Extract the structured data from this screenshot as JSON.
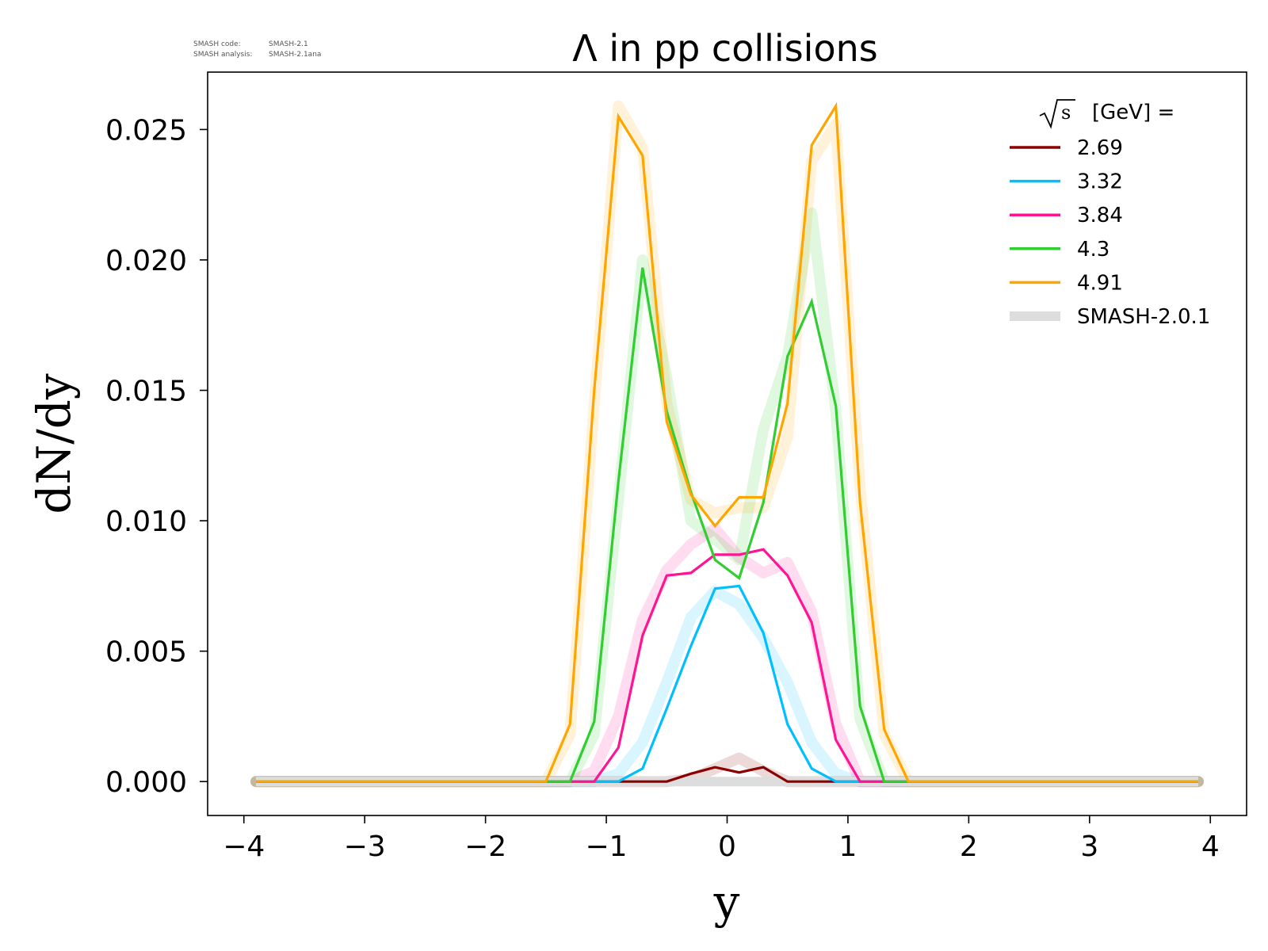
{
  "meta": {
    "code_label": "SMASH code:",
    "code_value": "SMASH-2.1",
    "analysis_label": "SMASH analysis:",
    "analysis_value": "SMASH-2.1ana"
  },
  "chart_data": {
    "type": "line",
    "title": "Λ in pp collisions",
    "xlabel": "y",
    "ylabel": "dN/dy",
    "xlim": [
      -4.3,
      4.3
    ],
    "ylim": [
      -0.0013,
      0.0272
    ],
    "xticks": [
      -4,
      -3,
      -2,
      -1,
      0,
      1,
      2,
      3,
      4
    ],
    "xtick_labels": [
      "−4",
      "−3",
      "−2",
      "−1",
      "0",
      "1",
      "2",
      "3",
      "4"
    ],
    "yticks": [
      0.0,
      0.005,
      0.01,
      0.015,
      0.02,
      0.025
    ],
    "ytick_labels": [
      "0.000",
      "0.005",
      "0.010",
      "0.015",
      "0.020",
      "0.025"
    ],
    "grid": false,
    "legend": {
      "placement": "top-right",
      "title_sqrt": "s",
      "title_suffix": "[GeV] ="
    },
    "x": [
      -3.9,
      -3.7,
      -3.5,
      -3.3,
      -3.1,
      -2.9,
      -2.7,
      -2.5,
      -2.3,
      -2.1,
      -1.9,
      -1.7,
      -1.5,
      -1.3,
      -1.1,
      -0.9,
      -0.7,
      -0.5,
      -0.3,
      -0.1,
      0.1,
      0.3,
      0.5,
      0.7,
      0.9,
      1.1,
      1.3,
      1.5,
      1.7,
      1.9,
      2.1,
      2.3,
      2.5,
      2.7,
      2.9,
      3.1,
      3.3,
      3.5,
      3.7,
      3.9
    ],
    "series": [
      {
        "name": "2.69",
        "color": "#8b0000",
        "values": [
          0,
          0,
          0,
          0,
          0,
          0,
          0,
          0,
          0,
          0,
          0,
          0,
          0,
          0,
          0,
          0,
          0,
          0,
          0.0003,
          0.00055,
          0.00035,
          0.00055,
          0,
          0,
          0,
          0,
          0,
          0,
          0,
          0,
          0,
          0,
          0,
          0,
          0,
          0,
          0,
          0,
          0,
          0
        ],
        "reference": [
          0,
          0,
          0,
          0,
          0,
          0,
          0,
          0,
          0,
          0,
          0,
          0,
          0,
          0,
          0,
          0,
          0,
          0,
          0.0001,
          0.0005,
          0.0009,
          0.0004,
          0,
          0,
          0,
          0,
          0,
          0,
          0,
          0,
          0,
          0,
          0,
          0,
          0,
          0,
          0,
          0,
          0,
          0
        ]
      },
      {
        "name": "3.32",
        "color": "#00bfff",
        "values": [
          0,
          0,
          0,
          0,
          0,
          0,
          0,
          0,
          0,
          0,
          0,
          0,
          0,
          0,
          0,
          0,
          0.0005,
          0.0028,
          0.0052,
          0.0074,
          0.0075,
          0.0057,
          0.0022,
          0.0005,
          0,
          0,
          0,
          0,
          0,
          0,
          0,
          0,
          0,
          0,
          0,
          0,
          0,
          0,
          0,
          0
        ],
        "reference": [
          0,
          0,
          0,
          0,
          0,
          0,
          0,
          0,
          0,
          0,
          0,
          0,
          0,
          0,
          0,
          0.0003,
          0.0015,
          0.0038,
          0.0063,
          0.0073,
          0.0068,
          0.0055,
          0.0038,
          0.0015,
          0.0003,
          0,
          0,
          0,
          0,
          0,
          0,
          0,
          0,
          0,
          0,
          0,
          0,
          0,
          0,
          0
        ]
      },
      {
        "name": "3.84",
        "color": "#ff1493",
        "values": [
          0,
          0,
          0,
          0,
          0,
          0,
          0,
          0,
          0,
          0,
          0,
          0,
          0,
          0,
          0,
          0.0013,
          0.0056,
          0.0079,
          0.008,
          0.0087,
          0.0087,
          0.0089,
          0.0079,
          0.0061,
          0.0016,
          0,
          0,
          0,
          0,
          0,
          0,
          0,
          0,
          0,
          0,
          0,
          0,
          0,
          0,
          0
        ],
        "reference": [
          0,
          0,
          0,
          0,
          0,
          0,
          0,
          0,
          0,
          0,
          0,
          0,
          0,
          0,
          0.0004,
          0.0025,
          0.0062,
          0.0081,
          0.0091,
          0.0097,
          0.0086,
          0.008,
          0.0084,
          0.0065,
          0.0022,
          0,
          0,
          0,
          0,
          0,
          0,
          0,
          0,
          0,
          0,
          0,
          0,
          0,
          0,
          0
        ]
      },
      {
        "name": "4.3",
        "color": "#32cd32",
        "values": [
          0,
          0,
          0,
          0,
          0,
          0,
          0,
          0,
          0,
          0,
          0,
          0,
          0,
          0,
          0.0023,
          0.0115,
          0.0197,
          0.0142,
          0.0111,
          0.0085,
          0.0078,
          0.0107,
          0.0163,
          0.0184,
          0.0144,
          0.0029,
          0,
          0,
          0,
          0,
          0,
          0,
          0,
          0,
          0,
          0,
          0,
          0,
          0,
          0
        ],
        "reference": [
          0,
          0,
          0,
          0,
          0,
          0,
          0,
          0,
          0,
          0,
          0,
          0,
          0,
          0,
          0.0018,
          0.0108,
          0.02,
          0.0155,
          0.01,
          0.0093,
          0.0085,
          0.0135,
          0.0163,
          0.0218,
          0.0142,
          0.0024,
          0,
          0,
          0,
          0,
          0,
          0,
          0,
          0,
          0,
          0,
          0,
          0,
          0,
          0
        ]
      },
      {
        "name": "4.91",
        "color": "#ffa500",
        "values": [
          0,
          0,
          0,
          0,
          0,
          0,
          0,
          0,
          0,
          0,
          0,
          0,
          0,
          0.0022,
          0.015,
          0.0255,
          0.024,
          0.0138,
          0.011,
          0.0098,
          0.0109,
          0.0109,
          0.0145,
          0.0244,
          0.0259,
          0.0107,
          0.002,
          0,
          0,
          0,
          0,
          0,
          0,
          0,
          0,
          0,
          0,
          0,
          0,
          0
        ],
        "reference": [
          0,
          0,
          0,
          0,
          0,
          0,
          0,
          0,
          0,
          0,
          0,
          0,
          0,
          0.0018,
          0.0145,
          0.0259,
          0.0243,
          0.0145,
          0.0108,
          0.0103,
          0.0105,
          0.0105,
          0.0132,
          0.0238,
          0.0252,
          0.0113,
          0.0018,
          0,
          0,
          0,
          0,
          0,
          0,
          0,
          0,
          0,
          0,
          0,
          0,
          0
        ]
      }
    ],
    "reference_series": {
      "name": "SMASH-2.0.1",
      "color": "#dddddd"
    }
  }
}
